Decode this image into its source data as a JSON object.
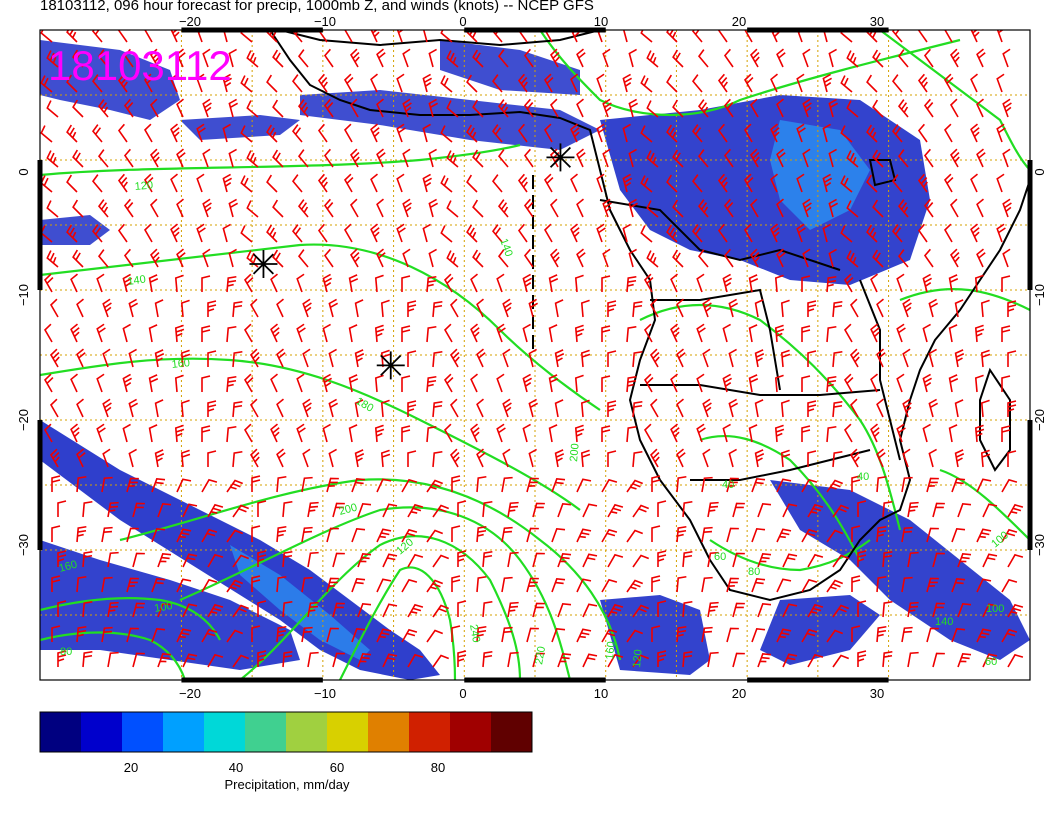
{
  "header": {
    "title": "18103112, 096 hour forecast for precip, 1000mb Z, and winds (knots) -- NCEP GFS",
    "date_stamp": "18103112"
  },
  "map": {
    "lon_range": [
      -30,
      40
    ],
    "lat_range": [
      -40,
      10
    ],
    "lon_ticks_top": [
      "−20",
      "−10",
      "0",
      "10",
      "20",
      "30"
    ],
    "lon_ticks_bottom": [
      "−20",
      "−10",
      "0",
      "10",
      "20",
      "30"
    ],
    "lat_ticks_left": [
      "0",
      "−10",
      "−20",
      "−30"
    ],
    "lat_ticks_right": [
      "0",
      "−10",
      "−20",
      "−30"
    ],
    "contour_labels": [
      "120",
      "140",
      "140",
      "160",
      "160",
      "180",
      "200",
      "100",
      "120",
      "240",
      "220",
      "200",
      "160",
      "120",
      "80",
      "40",
      "40",
      "60",
      "80",
      "100",
      "140",
      "60",
      "100"
    ],
    "colors": {
      "contours": "#22dd22",
      "wind_barbs": "#ee0000",
      "grid": "#d4a000",
      "coast": "#000000",
      "date_stamp": "#ff00ff"
    },
    "low_markers": [
      {
        "lon": -14.2,
        "lat": -8
      },
      {
        "lon": -5.2,
        "lat": -15.8
      },
      {
        "lon": 6.8,
        "lat": 0.2
      }
    ]
  },
  "colorbar": {
    "label": "Precipitation, mm/day",
    "ticks": [
      "20",
      "40",
      "60",
      "80"
    ],
    "colors": [
      "#000080",
      "#0000cc",
      "#0050ff",
      "#00a0ff",
      "#00d8d8",
      "#40d090",
      "#a0d040",
      "#d8d000",
      "#e08000",
      "#d02000",
      "#a00000",
      "#600000"
    ]
  }
}
